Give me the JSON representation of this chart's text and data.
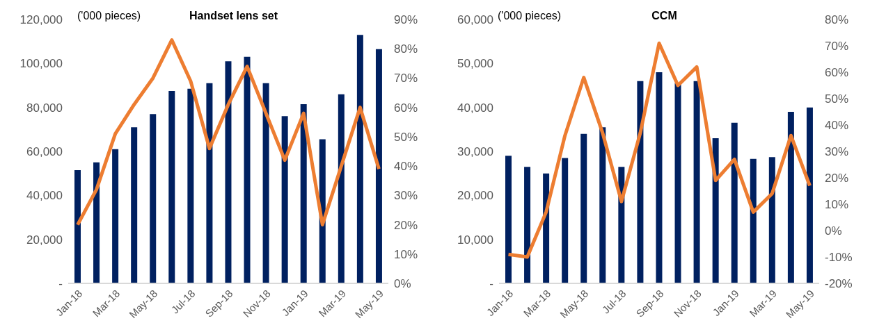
{
  "chart_data": [
    {
      "type": "bar",
      "title": "Handset lens set",
      "ylabel": "('000 pieces)",
      "categories": [
        "Jan-18",
        null,
        "Mar-18",
        null,
        "May-18",
        null,
        "Jul-18",
        null,
        "Sep-18",
        null,
        "Nov-18",
        null,
        "Jan-19",
        null,
        "Mar-19",
        null,
        "May-19"
      ],
      "series": [
        {
          "color": "#002060",
          "values": [
            51500,
            55000,
            61000,
            71000,
            77000,
            87500,
            88500,
            91000,
            101000,
            103000,
            91000,
            76000,
            81500,
            65500,
            86000,
            113000,
            106500
          ]
        },
        {
          "type": "line",
          "axis": "y2",
          "color": "#ed7d31",
          "values": [
            20,
            32,
            51,
            61,
            70,
            83,
            69,
            46,
            61,
            74,
            58,
            42,
            58,
            20,
            40,
            60,
            39
          ]
        }
      ],
      "ylim": [
        0,
        120000
      ],
      "yticks": [
        {
          "value": 0,
          "label": "-"
        },
        {
          "value": 20000,
          "label": "20,000"
        },
        {
          "value": 40000,
          "label": "40,000"
        },
        {
          "value": 60000,
          "label": "60,000"
        },
        {
          "value": 80000,
          "label": "80,000"
        },
        {
          "value": 100000,
          "label": "100,000"
        },
        {
          "value": 120000,
          "label": "120,000"
        }
      ],
      "y2lim": [
        0,
        90
      ],
      "y2ticks": [
        {
          "value": 0,
          "label": "0%"
        },
        {
          "value": 10,
          "label": "10%"
        },
        {
          "value": 20,
          "label": "20%"
        },
        {
          "value": 30,
          "label": "30%"
        },
        {
          "value": 40,
          "label": "40%"
        },
        {
          "value": 50,
          "label": "50%"
        },
        {
          "value": 60,
          "label": "60%"
        },
        {
          "value": 70,
          "label": "70%"
        },
        {
          "value": 80,
          "label": "80%"
        },
        {
          "value": 90,
          "label": "90%"
        }
      ],
      "grid": false,
      "legend": false,
      "marker": "none"
    },
    {
      "type": "bar",
      "title": "CCM",
      "ylabel": "('000 pieces)",
      "categories": [
        "Jan-18",
        null,
        "Mar-18",
        null,
        "May-18",
        null,
        "Jul-18",
        null,
        "Sep-18",
        null,
        "Nov-18",
        null,
        "Jan-19",
        null,
        "Mar-19",
        null,
        "May-19"
      ],
      "series": [
        {
          "color": "#002060",
          "values": [
            29000,
            26500,
            25000,
            28500,
            34000,
            35500,
            26500,
            46000,
            48000,
            45500,
            46000,
            33000,
            36500,
            28300,
            28700,
            39000,
            40000
          ]
        },
        {
          "type": "line",
          "axis": "y2",
          "color": "#ed7d31",
          "values": [
            -9,
            -10,
            7,
            36,
            58,
            37,
            11,
            37,
            71,
            55,
            62,
            19,
            27,
            7,
            14,
            36,
            17
          ]
        }
      ],
      "ylim": [
        0,
        60000
      ],
      "yticks": [
        {
          "value": 0,
          "label": "-"
        },
        {
          "value": 10000,
          "label": "10,000"
        },
        {
          "value": 20000,
          "label": "20,000"
        },
        {
          "value": 30000,
          "label": "30,000"
        },
        {
          "value": 40000,
          "label": "40,000"
        },
        {
          "value": 50000,
          "label": "50,000"
        },
        {
          "value": 60000,
          "label": "60,000"
        }
      ],
      "y2lim": [
        -20,
        80
      ],
      "y2ticks": [
        {
          "value": -20,
          "label": "-20%"
        },
        {
          "value": -10,
          "label": "-10%"
        },
        {
          "value": 0,
          "label": "0%"
        },
        {
          "value": 10,
          "label": "10%"
        },
        {
          "value": 20,
          "label": "20%"
        },
        {
          "value": 30,
          "label": "30%"
        },
        {
          "value": 40,
          "label": "40%"
        },
        {
          "value": 50,
          "label": "50%"
        },
        {
          "value": 60,
          "label": "60%"
        },
        {
          "value": 70,
          "label": "70%"
        },
        {
          "value": 80,
          "label": "80%"
        }
      ],
      "grid": false,
      "legend": false,
      "marker": "none"
    }
  ]
}
